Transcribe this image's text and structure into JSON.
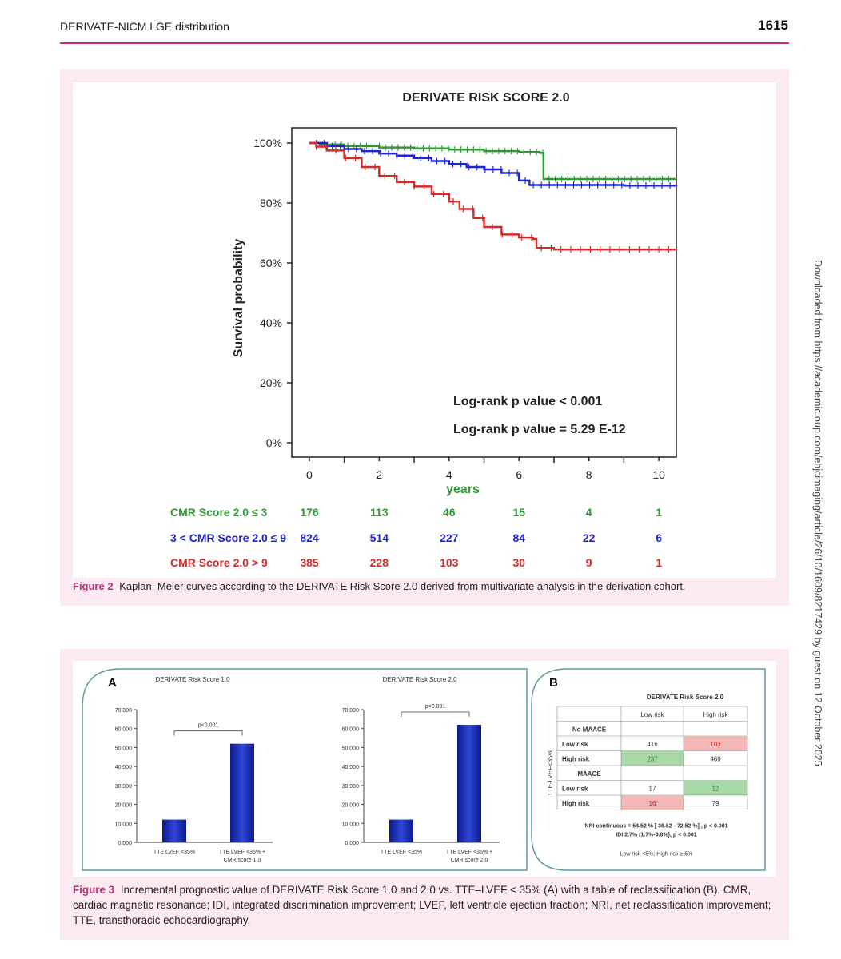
{
  "header": {
    "title": "DERIVATE-NICM LGE distribution",
    "page": "1615"
  },
  "side_text": "Downloaded from https://academic.oup.com/ehjcimaging/article/26/10/1609/8217429 by guest on 12 October 2025",
  "figure2": {
    "caption_label": "Figure 2",
    "caption_text": "Kaplan–Meier curves according to the DERIVATE Risk Score 2.0 derived from multivariate analysis in the derivation cohort.",
    "chart_data": {
      "type": "line",
      "title": "DERIVATE RISK SCORE 2.0",
      "xlabel": "years",
      "ylabel": "Survival probability",
      "xlim": [
        -0.5,
        10.5
      ],
      "ylim": [
        0,
        100
      ],
      "x_ticks": [
        "0",
        "2",
        "4",
        "6",
        "8",
        "10"
      ],
      "y_ticks": [
        "0%",
        "20%",
        "40%",
        "60%",
        "80%",
        "100%"
      ],
      "annotations": [
        "Log-rank p value < 0.001",
        "Log-rank p value = 5.29 E-12"
      ],
      "colors": {
        "low": "#2e9a35",
        "mid": "#1e24d6",
        "high": "#d42a2a"
      },
      "series": [
        {
          "name": "CMR Score 2.0 ≤ 3",
          "color": "#2e9a35",
          "points": [
            [
              0,
              100
            ],
            [
              0.3,
              99.5
            ],
            [
              1,
              99
            ],
            [
              2,
              98.5
            ],
            [
              3,
              98.2
            ],
            [
              4,
              97.8
            ],
            [
              5,
              97.3
            ],
            [
              6,
              97
            ],
            [
              6.6,
              96.7
            ],
            [
              6.7,
              88
            ],
            [
              10.5,
              88
            ]
          ]
        },
        {
          "name": "3 < CMR Score 2.0 ≤ 9",
          "color": "#1e24d6",
          "points": [
            [
              0,
              100
            ],
            [
              0.5,
              99
            ],
            [
              1,
              98
            ],
            [
              1.5,
              97.3
            ],
            [
              2,
              96.5
            ],
            [
              2.5,
              95.8
            ],
            [
              3,
              95
            ],
            [
              3.5,
              94
            ],
            [
              4,
              93
            ],
            [
              4.5,
              92
            ],
            [
              5,
              91.2
            ],
            [
              5.5,
              90
            ],
            [
              6,
              87.5
            ],
            [
              6.3,
              86
            ],
            [
              7,
              86
            ],
            [
              8,
              86
            ],
            [
              9,
              85.8
            ],
            [
              10.5,
              85.5
            ]
          ]
        },
        {
          "name": "CMR Score 2.0 > 9",
          "color": "#d42a2a",
          "points": [
            [
              0,
              100
            ],
            [
              0.2,
              98.8
            ],
            [
              0.5,
              97.5
            ],
            [
              1,
              95
            ],
            [
              1.5,
              92
            ],
            [
              2,
              89
            ],
            [
              2.5,
              87
            ],
            [
              3,
              85.5
            ],
            [
              3.5,
              83
            ],
            [
              4,
              80.5
            ],
            [
              4.3,
              78
            ],
            [
              4.7,
              75
            ],
            [
              5,
              72
            ],
            [
              5.5,
              69.5
            ],
            [
              6,
              68.5
            ],
            [
              6.4,
              68
            ],
            [
              6.5,
              65
            ],
            [
              7,
              64.5
            ],
            [
              8,
              64.5
            ],
            [
              9,
              64.5
            ],
            [
              10.5,
              64.5
            ]
          ]
        }
      ],
      "risk_table": {
        "x": [
          0,
          2,
          4,
          6,
          8,
          10
        ],
        "rows": [
          {
            "label": "CMR Score 2.0 ≤ 3",
            "color": "#2e9a35",
            "values": [
              "176",
              "113",
              "46",
              "15",
              "4",
              "1"
            ]
          },
          {
            "label": "3 < CMR Score 2.0 ≤ 9",
            "color": "#1e24d6",
            "values": [
              "824",
              "514",
              "227",
              "84",
              "22",
              "6"
            ]
          },
          {
            "label": "CMR Score 2.0 > 9",
            "color": "#d42a2a",
            "values": [
              "385",
              "228",
              "103",
              "30",
              "9",
              "1"
            ]
          }
        ]
      }
    }
  },
  "figure3": {
    "caption_label": "Figure 3",
    "caption_text": "Incremental prognostic value of DERIVATE Risk Score 1.0 and 2.0 vs. TTE–LVEF < 35% (A) with a table of reclassification (B). CMR, cardiac magnetic resonance; IDI, integrated discrimination improvement; LVEF, left ventricle ejection fraction; NRI, net reclassification improvement; TTE, transthoracic echocardiography.",
    "panel_a_label": "A",
    "panel_b_label": "B",
    "chart_data": [
      {
        "type": "bar",
        "title": "DERIVATE Risk Score 1.0",
        "categories": [
          "TTE LVEF <35%",
          "TTE LVEF <35% + CMR score 1.0"
        ],
        "values": [
          12,
          52
        ],
        "ylim": [
          0,
          70
        ],
        "y_ticks": [
          "0.000",
          "10.000",
          "20.000",
          "30.000",
          "40.000",
          "50.000",
          "60.000",
          "70.000"
        ],
        "annotation": "p<0.001"
      },
      {
        "type": "bar",
        "title": "DERIVATE Risk Score 2.0",
        "categories": [
          "TTE LVEF <35%",
          "TTE LVEF <35% + CMR score 2.0"
        ],
        "values": [
          12,
          62
        ],
        "ylim": [
          0,
          70
        ],
        "y_ticks": [
          "0.000",
          "10.000",
          "20.000",
          "30.000",
          "40.000",
          "50.000",
          "60.000",
          "70.000"
        ],
        "annotation": "p<0.001"
      }
    ],
    "reclass": {
      "title": "DERIVATE Risk Score 2.0",
      "col_headers": [
        "Low risk",
        "High risk"
      ],
      "side_label": "TTE-LVEF<35%",
      "groups": [
        {
          "label": "No MAACE",
          "rows": [
            {
              "label": "Low risk",
              "values": [
                "416",
                "103"
              ],
              "highlight": [
                "",
                "red"
              ]
            },
            {
              "label": "High risk",
              "values": [
                "237",
                "469"
              ],
              "highlight": [
                "green",
                ""
              ]
            }
          ]
        },
        {
          "label": "MAACE",
          "rows": [
            {
              "label": "Low risk",
              "values": [
                "17",
                "12"
              ],
              "highlight": [
                "",
                "green"
              ]
            },
            {
              "label": "High risk",
              "values": [
                "16",
                "79"
              ],
              "highlight": [
                "red",
                ""
              ]
            }
          ]
        }
      ],
      "nri": "NRI continuous = 54.52 % [ 36.52 - 72.52 %] , p < 0.001",
      "idi": "IDI 2.7% (1.7%-3.8%), p < 0.001",
      "footnote": "Low risk <5%; High risk ≥ 5%"
    }
  }
}
